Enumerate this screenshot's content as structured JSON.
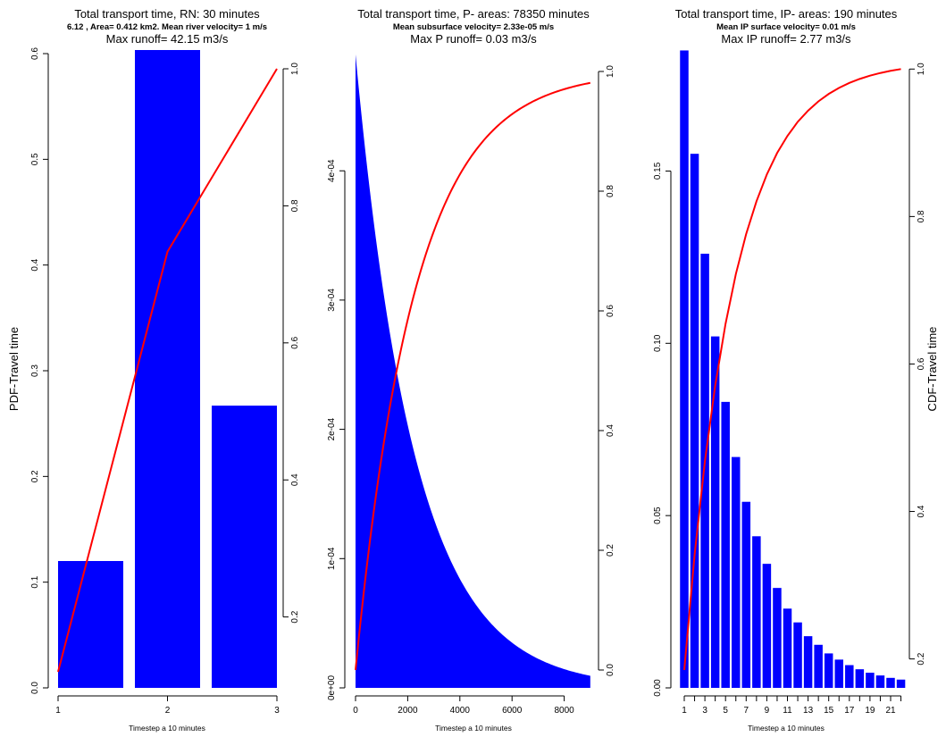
{
  "chart_data": [
    {
      "type": "bar",
      "title": "Total transport time, RN:  30  minutes",
      "subtitle": "6.12 , Area=  0.412  km2.  Mean river velocity= 1  m/s",
      "subtitle2": "Max runoff=  42.15 m3/s",
      "xlabel": "Timestep a  10  minutes",
      "ylabel": "PDF-Travel time",
      "categories": [
        "1",
        "2",
        "3"
      ],
      "values": [
        0.12,
        0.612,
        0.267
      ],
      "ylim": [
        0,
        0.6
      ],
      "y_ticks": [
        "0.0",
        "0.1",
        "0.2",
        "0.3",
        "0.4",
        "0.5",
        "0.6"
      ],
      "cdf": {
        "x": [
          1,
          2,
          3
        ],
        "y": [
          0.12,
          0.733,
          1.0
        ]
      },
      "y2_ticks": [
        "0.2",
        "0.4",
        "0.6",
        "0.8",
        "1.0"
      ],
      "bar_color": "#0000ff",
      "cdf_color": "#ff0000"
    },
    {
      "type": "area",
      "title": "Total transport time, P- areas:  78350  minutes",
      "subtitle": "Mean subsurface velocity= 2.33e-05  m/s",
      "subtitle2": "Max P runoff=  0.03 m3/s",
      "xlabel": "Timestep a  10  minutes",
      "x_ticks": [
        "0",
        "2000",
        "4000",
        "6000",
        "8000"
      ],
      "pdf": {
        "x0": 0,
        "x1": 9000,
        "y0": 0.00049,
        "decay": 0.00044,
        "ymax": 0.00049
      },
      "y_ticks": [
        "0e+00",
        "1e-04",
        "2e-04",
        "3e-04",
        "4e-04"
      ],
      "cdf": {
        "decay": 0.00044
      },
      "y2_ticks": [
        "0.0",
        "0.2",
        "0.4",
        "0.6",
        "0.8",
        "1.0"
      ],
      "fill_color": "#0000ff",
      "cdf_color": "#ff0000"
    },
    {
      "type": "bar",
      "title": "Total transport time, IP- areas:  190  minutes",
      "subtitle": "Mean IP surface velocity= 0.01  m/s",
      "subtitle2": "Max IP runoff=  2.77 m3/s",
      "xlabel": "Timestep a  10  minutes",
      "ylabel2": "CDF-Travel time",
      "x_ticks": [
        "1",
        "3",
        "5",
        "7",
        "9",
        "11",
        "13",
        "15",
        "17",
        "19",
        "21"
      ],
      "values": [
        0.185,
        0.155,
        0.126,
        0.102,
        0.083,
        0.067,
        0.054,
        0.044,
        0.036,
        0.029,
        0.023,
        0.019,
        0.015,
        0.0125,
        0.01,
        0.0082,
        0.0066,
        0.0054,
        0.0044,
        0.0036,
        0.0029,
        0.0024
      ],
      "ylim": [
        0,
        0.185
      ],
      "y_ticks": [
        "0.00",
        "0.05",
        "0.10",
        "0.15"
      ],
      "y2_ticks": [
        "0.2",
        "0.4",
        "0.6",
        "0.8",
        "1.0"
      ],
      "bar_color": "#0000ff",
      "cdf_color": "#ff0000"
    }
  ]
}
